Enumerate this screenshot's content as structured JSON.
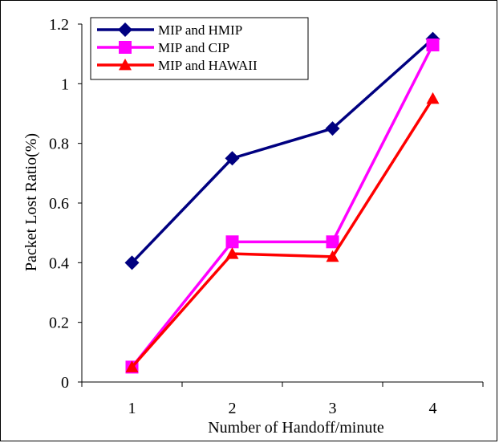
{
  "chart_data": {
    "type": "line",
    "xlabel": "Number of Handoff/minute",
    "ylabel": "Packet Lost Ratio(%)",
    "x": [
      1,
      2,
      3,
      4
    ],
    "x_tick_labels": [
      "1",
      "2",
      "3",
      "4"
    ],
    "ylim": [
      0,
      1.2
    ],
    "y_ticks": [
      0,
      0.2,
      0.4,
      0.6,
      0.8,
      1,
      1.2
    ],
    "y_tick_labels": [
      "0",
      "0.2",
      "0.4",
      "0.6",
      "0.8",
      "1",
      "1.2"
    ],
    "grid": false,
    "legend_position": "top-left",
    "series": [
      {
        "name": "MIP and HMIP",
        "values": [
          0.4,
          0.75,
          0.85,
          1.15
        ],
        "color": "#000080",
        "marker": "diamond"
      },
      {
        "name": "MIP and CIP",
        "values": [
          0.05,
          0.47,
          0.47,
          1.13
        ],
        "color": "#ff00ff",
        "marker": "square"
      },
      {
        "name": "MIP and HAWAII",
        "values": [
          0.05,
          0.43,
          0.42,
          0.95
        ],
        "color": "#ff0000",
        "marker": "triangle"
      }
    ]
  }
}
